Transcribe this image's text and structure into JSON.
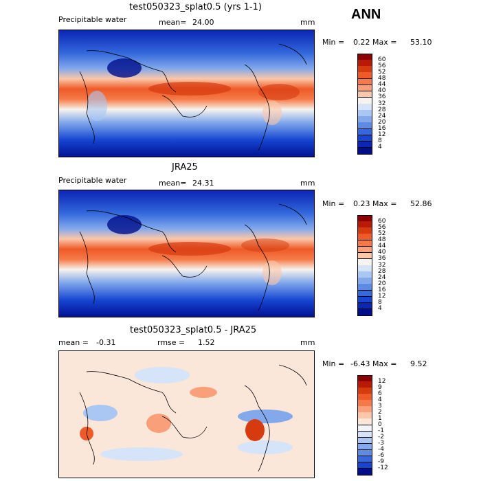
{
  "header": {
    "season": "ANN"
  },
  "panels": [
    {
      "title": "test050323_splat0.5 (yrs 1-1)",
      "left_label": "Precipitable water",
      "mean_label": "mean=",
      "mean_value": "24.00",
      "units": "mm",
      "min_label": "Min =",
      "min_value": "0.22",
      "max_label": "Max =",
      "max_value": "53.10",
      "colorbar": {
        "labels": [
          "60",
          "56",
          "52",
          "48",
          "44",
          "40",
          "36",
          "32",
          "28",
          "24",
          "20",
          "16",
          "12",
          "8",
          "4"
        ],
        "colors": [
          "#8b0000",
          "#b81a06",
          "#d63b10",
          "#ee5a28",
          "#f57a48",
          "#f9a07a",
          "#fcc6a8",
          "#f7f3ee",
          "#d5e4f8",
          "#aac6f2",
          "#83a9ec",
          "#5c8be4",
          "#3468dc",
          "#1545d2",
          "#0926b4",
          "#000e8c"
        ]
      }
    },
    {
      "title": "JRA25",
      "left_label": "Precipitable water",
      "mean_label": "mean=",
      "mean_value": "24.31",
      "units": "mm",
      "min_label": "Min =",
      "min_value": "0.23",
      "max_label": "Max =",
      "max_value": "52.86",
      "colorbar": {
        "labels": [
          "60",
          "56",
          "52",
          "48",
          "44",
          "40",
          "36",
          "32",
          "28",
          "24",
          "20",
          "16",
          "12",
          "8",
          "4"
        ],
        "colors": [
          "#8b0000",
          "#b81a06",
          "#d63b10",
          "#ee5a28",
          "#f57a48",
          "#f9a07a",
          "#fcc6a8",
          "#f7f3ee",
          "#d5e4f8",
          "#aac6f2",
          "#83a9ec",
          "#5c8be4",
          "#3468dc",
          "#1545d2",
          "#0926b4",
          "#000e8c"
        ]
      }
    },
    {
      "title": "test050323_splat0.5 - JRA25",
      "mean_label": "mean =",
      "mean_value": "-0.31",
      "rmse_label": "rmse =",
      "rmse_value": "1.52",
      "units": "mm",
      "min_label": "Min =",
      "min_value": "-6.43",
      "max_label": "Max =",
      "max_value": "9.52",
      "colorbar": {
        "labels": [
          "12",
          "9",
          "6",
          "4",
          "3",
          "2",
          "1",
          "0",
          "-1",
          "-2",
          "-3",
          "-4",
          "-6",
          "-9",
          "-12"
        ],
        "colors": [
          "#8b0000",
          "#b81a06",
          "#d63b10",
          "#ee5a28",
          "#f57a48",
          "#f9a07a",
          "#fcc6a8",
          "#fbe6da",
          "#f2f4fb",
          "#d5e4f8",
          "#aac6f2",
          "#83a9ec",
          "#5c8be4",
          "#3468dc",
          "#1545d2",
          "#000e8c"
        ]
      }
    }
  ]
}
